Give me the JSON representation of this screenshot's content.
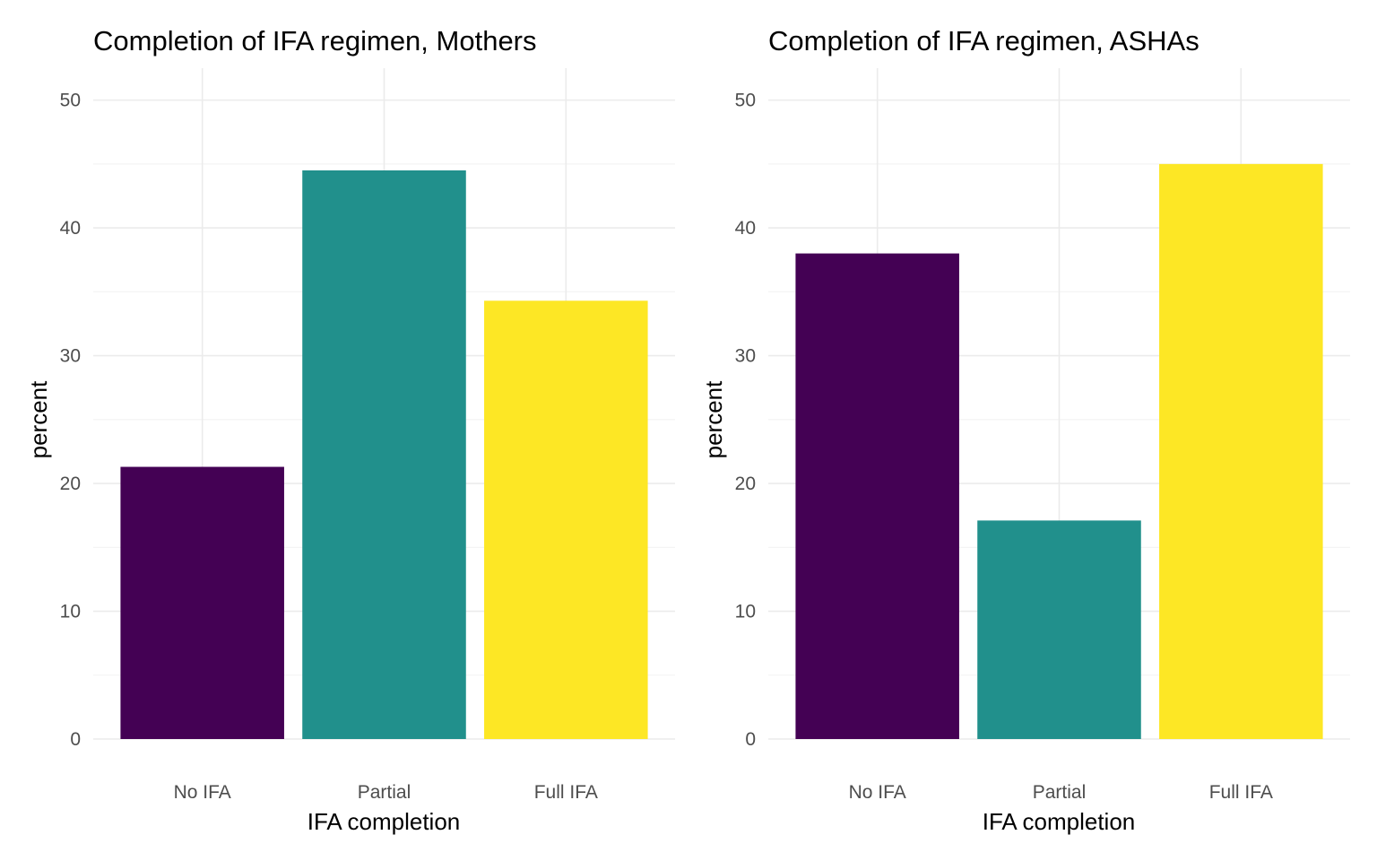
{
  "chart_data": [
    {
      "type": "bar",
      "title": "Completion of IFA regimen, Mothers",
      "xlabel": "IFA completion",
      "ylabel": "percent",
      "categories": [
        "No IFA",
        "Partial",
        "Full IFA"
      ],
      "values": [
        21.3,
        44.5,
        34.3
      ],
      "colors": [
        "#440154",
        "#21908C",
        "#FDE725"
      ],
      "ylim": [
        0,
        52.5
      ],
      "yticks": [
        0,
        10,
        20,
        30,
        40,
        50
      ],
      "grid": true,
      "legend": "none"
    },
    {
      "type": "bar",
      "title": "Completion of IFA regimen, ASHAs",
      "xlabel": "IFA completion",
      "ylabel": "percent",
      "categories": [
        "No IFA",
        "Partial",
        "Full IFA"
      ],
      "values": [
        38.0,
        17.1,
        45.0
      ],
      "colors": [
        "#440154",
        "#21908C",
        "#FDE725"
      ],
      "ylim": [
        0,
        52.5
      ],
      "yticks": [
        0,
        10,
        20,
        30,
        40,
        50
      ],
      "grid": true,
      "legend": "none"
    }
  ]
}
